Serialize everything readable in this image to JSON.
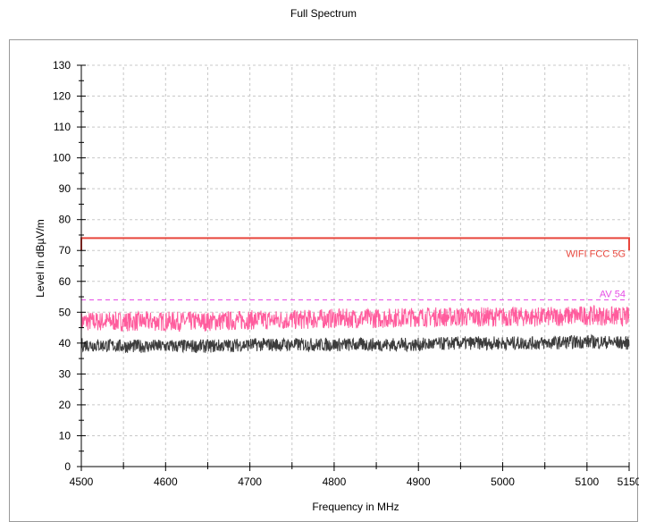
{
  "page": {
    "title": "Full Spectrum"
  },
  "chart_data": {
    "type": "line",
    "title": "Full Spectrum",
    "xlabel": "Frequency in MHz",
    "ylabel": "Level in dBµV/m",
    "xlim": [
      4500,
      5150
    ],
    "ylim": [
      0,
      130
    ],
    "x_ticks": [
      4500,
      4600,
      4700,
      4800,
      4900,
      5000,
      5100,
      5150
    ],
    "y_ticks": [
      0,
      10,
      20,
      30,
      40,
      50,
      60,
      70,
      80,
      90,
      100,
      110,
      120,
      130
    ],
    "grid": true,
    "limit_lines": [
      {
        "label": "WIFI FCC 5G",
        "value": 74,
        "style": "solid",
        "color": "#e8463c"
      },
      {
        "label": "AV 54",
        "value": 54,
        "style": "dashed",
        "color": "#e64ce6"
      }
    ],
    "series": [
      {
        "color": "#ff5c9d",
        "x": [
          4500,
          4550,
          4600,
          4650,
          4700,
          4750,
          4800,
          4850,
          4900,
          4950,
          5000,
          5050,
          5100,
          5150
        ],
        "values": [
          47,
          47,
          47,
          47,
          47.5,
          47.5,
          48,
          48,
          48.5,
          48.5,
          48.5,
          48.5,
          49,
          48.5
        ]
      },
      {
        "color": "#3c3c3c",
        "x": [
          4500,
          4550,
          4600,
          4650,
          4700,
          4750,
          4800,
          4850,
          4900,
          4950,
          5000,
          5050,
          5100,
          5150
        ],
        "values": [
          39.5,
          39,
          39,
          39,
          39.5,
          39.5,
          39.5,
          39.5,
          39.5,
          40,
          40,
          40,
          40.5,
          40
        ]
      }
    ]
  }
}
